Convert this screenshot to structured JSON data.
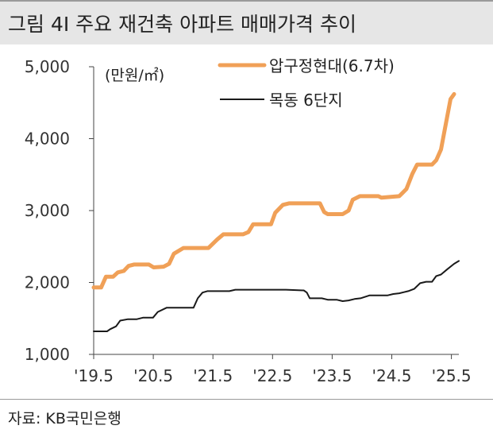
{
  "title": "그림 4I 주요 재건축 아파트 매매가격 추이",
  "source": "자료: KB국민은행",
  "chart_data": {
    "type": "line",
    "unit_label": "(만원/㎡)",
    "ylim": [
      1000,
      5000
    ],
    "yticks": [
      1000,
      2000,
      3000,
      4000,
      5000
    ],
    "ytick_labels": [
      "1,000",
      "2,000",
      "3,000",
      "4,000",
      "5,000"
    ],
    "xlim": [
      2019.375,
      2025.5
    ],
    "xticks": [
      2019.375,
      2020.375,
      2021.375,
      2022.375,
      2023.375,
      2024.375,
      2025.375
    ],
    "xtick_labels": [
      "'19.5",
      "'20.5",
      "'21.5",
      "'22.5",
      "'23.5",
      "'24.5",
      "'25.5"
    ],
    "grid": false,
    "legend": "top-right",
    "series": [
      {
        "name": "압구정현대(6.7차)",
        "color": "#f0a057",
        "points": [
          [
            2019.375,
            1930
          ],
          [
            2019.5,
            1930
          ],
          [
            2019.58,
            2080
          ],
          [
            2019.7,
            2080
          ],
          [
            2019.78,
            2140
          ],
          [
            2019.88,
            2160
          ],
          [
            2019.96,
            2230
          ],
          [
            2020.05,
            2250
          ],
          [
            2020.3,
            2250
          ],
          [
            2020.38,
            2210
          ],
          [
            2020.55,
            2220
          ],
          [
            2020.64,
            2260
          ],
          [
            2020.72,
            2400
          ],
          [
            2020.88,
            2480
          ],
          [
            2021.3,
            2480
          ],
          [
            2021.45,
            2600
          ],
          [
            2021.55,
            2670
          ],
          [
            2021.88,
            2670
          ],
          [
            2021.97,
            2700
          ],
          [
            2022.05,
            2810
          ],
          [
            2022.35,
            2810
          ],
          [
            2022.42,
            2970
          ],
          [
            2022.55,
            3080
          ],
          [
            2022.65,
            3100
          ],
          [
            2023.0,
            3100
          ],
          [
            2023.17,
            3100
          ],
          [
            2023.24,
            2980
          ],
          [
            2023.3,
            2950
          ],
          [
            2023.55,
            2950
          ],
          [
            2023.65,
            3000
          ],
          [
            2023.72,
            3150
          ],
          [
            2023.84,
            3200
          ],
          [
            2024.15,
            3200
          ],
          [
            2024.2,
            3180
          ],
          [
            2024.5,
            3200
          ],
          [
            2024.62,
            3300
          ],
          [
            2024.72,
            3510
          ],
          [
            2024.8,
            3640
          ],
          [
            2025.05,
            3640
          ],
          [
            2025.12,
            3700
          ],
          [
            2025.2,
            3850
          ],
          [
            2025.28,
            4200
          ],
          [
            2025.36,
            4550
          ],
          [
            2025.42,
            4620
          ]
        ]
      },
      {
        "name": "목동 6단지",
        "color": "#1a1a1a",
        "points": [
          [
            2019.375,
            1320
          ],
          [
            2019.6,
            1320
          ],
          [
            2019.65,
            1350
          ],
          [
            2019.75,
            1390
          ],
          [
            2019.82,
            1470
          ],
          [
            2019.95,
            1490
          ],
          [
            2020.1,
            1490
          ],
          [
            2020.2,
            1510
          ],
          [
            2020.37,
            1510
          ],
          [
            2020.45,
            1590
          ],
          [
            2020.6,
            1650
          ],
          [
            2021.05,
            1650
          ],
          [
            2021.12,
            1780
          ],
          [
            2021.2,
            1860
          ],
          [
            2021.28,
            1880
          ],
          [
            2021.65,
            1880
          ],
          [
            2021.75,
            1900
          ],
          [
            2022.2,
            1900
          ],
          [
            2022.6,
            1900
          ],
          [
            2022.9,
            1890
          ],
          [
            2022.95,
            1860
          ],
          [
            2023.0,
            1780
          ],
          [
            2023.2,
            1780
          ],
          [
            2023.3,
            1760
          ],
          [
            2023.45,
            1760
          ],
          [
            2023.55,
            1740
          ],
          [
            2023.65,
            1750
          ],
          [
            2023.75,
            1770
          ],
          [
            2023.85,
            1780
          ],
          [
            2024.0,
            1820
          ],
          [
            2024.3,
            1820
          ],
          [
            2024.4,
            1840
          ],
          [
            2024.5,
            1850
          ],
          [
            2024.65,
            1880
          ],
          [
            2024.75,
            1910
          ],
          [
            2024.85,
            1990
          ],
          [
            2024.95,
            2010
          ],
          [
            2025.05,
            2010
          ],
          [
            2025.12,
            2090
          ],
          [
            2025.2,
            2110
          ],
          [
            2025.3,
            2180
          ],
          [
            2025.42,
            2260
          ],
          [
            2025.5,
            2300
          ]
        ]
      }
    ]
  }
}
